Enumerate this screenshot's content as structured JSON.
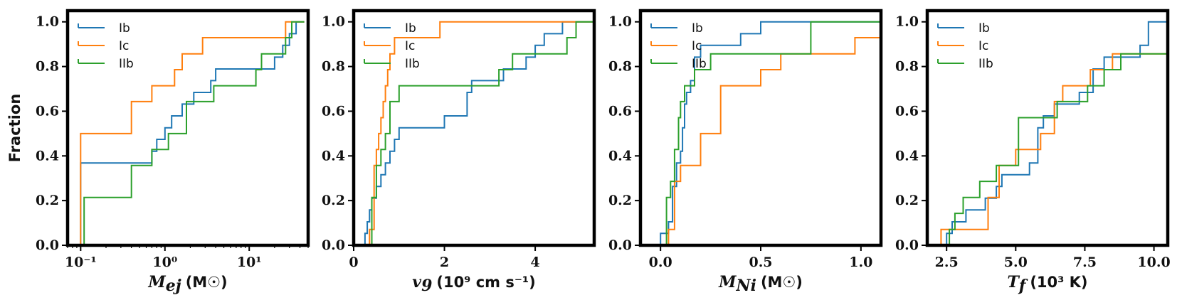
{
  "colors": {
    "Ib": "#1f77b4",
    "Ic": "#ff7f0e",
    "IIb": "#2ca02c"
  },
  "chart_data": [
    {
      "type": "line",
      "step": true,
      "ylabel": "Fraction",
      "xlabel_main": "M",
      "xlabel_sub": "ej",
      "xlabel_units": "(M☉)",
      "xscale": "log",
      "xlim": [
        0.07,
        50
      ],
      "ylim": [
        0,
        1.05
      ],
      "xticks": [
        0.1,
        1,
        10
      ],
      "xtick_labels": [
        "10⁻¹",
        "10⁰",
        "10¹"
      ],
      "yticks": [
        0,
        0.2,
        0.4,
        0.6,
        0.8,
        1.0
      ],
      "ytick_labels": [
        "0.0",
        "0.2",
        "0.4",
        "0.6",
        "0.8",
        "1.0"
      ],
      "legend": [
        "Ib",
        "Ic",
        "IIb"
      ],
      "legend_position": "top-left",
      "series": [
        {
          "name": "Ib",
          "x": [
            0.1,
            0.7,
            0.8,
            1.0,
            1.2,
            1.6,
            2.2,
            3.5,
            4.0,
            6.2,
            12,
            20,
            25,
            30,
            33,
            36,
            45
          ],
          "y": [
            0.368,
            0.421,
            0.474,
            0.526,
            0.579,
            0.632,
            0.684,
            0.737,
            0.789,
            0.789,
            0.789,
            0.842,
            0.895,
            0.947,
            0.947,
            1.0,
            1.0
          ]
        },
        {
          "name": "Ic",
          "x": [
            0.1,
            0.4,
            0.7,
            1.3,
            1.6,
            2.8,
            15,
            27,
            45
          ],
          "y": [
            0.5,
            0.643,
            0.714,
            0.786,
            0.857,
            0.929,
            0.929,
            1.0,
            1.0
          ]
        },
        {
          "name": "IIb",
          "x": [
            0.11,
            0.4,
            0.7,
            1.1,
            1.8,
            3.8,
            8.8,
            12,
            14,
            27,
            32,
            45
          ],
          "y": [
            0.214,
            0.357,
            0.429,
            0.5,
            0.643,
            0.714,
            0.714,
            0.786,
            0.857,
            0.929,
            1.0,
            1.0
          ]
        }
      ]
    },
    {
      "type": "line",
      "step": true,
      "xlabel_main": "v",
      "xlabel_sub": "9",
      "xlabel_units": "(10⁹ cm s⁻¹)",
      "xscale": "linear",
      "xlim": [
        0,
        5.3
      ],
      "ylim": [
        0,
        1.05
      ],
      "xticks": [
        0,
        2,
        4
      ],
      "xtick_labels": [
        "0",
        "2",
        "4"
      ],
      "yticks": [
        0,
        0.2,
        0.4,
        0.6,
        0.8,
        1.0
      ],
      "ytick_labels": [
        "0.0",
        "0.2",
        "0.4",
        "0.6",
        "0.8",
        "1.0"
      ],
      "legend": [
        "Ib",
        "Ic",
        "IIb"
      ],
      "legend_position": "top-left",
      "series": [
        {
          "name": "Ib",
          "x": [
            0.25,
            0.3,
            0.35,
            0.4,
            0.45,
            0.5,
            0.55,
            0.6,
            0.7,
            0.8,
            0.9,
            1.0,
            1.3,
            2.0,
            2.1,
            2.5,
            2.6,
            3.3,
            3.5,
            3.8,
            4.0,
            4.2,
            4.4,
            4.6,
            5.3
          ],
          "y": [
            0.053,
            0.105,
            0.158,
            0.211,
            0.211,
            0.263,
            0.263,
            0.316,
            0.368,
            0.421,
            0.474,
            0.526,
            0.526,
            0.579,
            0.579,
            0.684,
            0.737,
            0.789,
            0.789,
            0.842,
            0.895,
            0.947,
            0.947,
            1.0,
            1.0
          ]
        },
        {
          "name": "Ic",
          "x": [
            0.35,
            0.45,
            0.5,
            0.55,
            0.6,
            0.65,
            0.7,
            0.75,
            0.8,
            0.9,
            1.0,
            1.9,
            5.3
          ],
          "y": [
            0.071,
            0.357,
            0.429,
            0.5,
            0.571,
            0.643,
            0.714,
            0.786,
            0.857,
            0.929,
            0.929,
            1.0,
            1.0
          ]
        },
        {
          "name": "IIb",
          "x": [
            0.4,
            0.5,
            0.6,
            0.7,
            0.8,
            1.0,
            3.2,
            3.5,
            4.7,
            4.9,
            5.3
          ],
          "y": [
            0.214,
            0.357,
            0.429,
            0.5,
            0.643,
            0.714,
            0.786,
            0.857,
            0.929,
            1.0,
            1.0
          ]
        }
      ]
    },
    {
      "type": "line",
      "step": true,
      "xlabel_main": "M",
      "xlabel_sub": "Ni",
      "xlabel_units": "(M☉)",
      "xscale": "linear",
      "xlim": [
        -0.1,
        1.1
      ],
      "ylim": [
        0,
        1.05
      ],
      "xticks": [
        0.0,
        0.5,
        1.0
      ],
      "xtick_labels": [
        "0.0",
        "0.5",
        "1.0"
      ],
      "yticks": [
        0,
        0.2,
        0.4,
        0.6,
        0.8,
        1.0
      ],
      "ytick_labels": [
        "0.0",
        "0.2",
        "0.4",
        "0.6",
        "0.8",
        "1.0"
      ],
      "legend": [
        "Ib",
        "Ic",
        "IIb"
      ],
      "legend_position": "top-left",
      "series": [
        {
          "name": "Ib",
          "x": [
            0.0,
            0.04,
            0.06,
            0.08,
            0.1,
            0.11,
            0.12,
            0.13,
            0.15,
            0.17,
            0.2,
            0.25,
            0.4,
            0.45,
            0.5,
            1.1
          ],
          "y": [
            0.053,
            0.105,
            0.263,
            0.368,
            0.421,
            0.526,
            0.632,
            0.684,
            0.737,
            0.842,
            0.895,
            0.895,
            0.947,
            0.947,
            1.0,
            1.0
          ]
        },
        {
          "name": "Ic",
          "x": [
            0.04,
            0.07,
            0.1,
            0.15,
            0.2,
            0.3,
            0.5,
            0.6,
            0.97,
            1.1
          ],
          "y": [
            0.071,
            0.286,
            0.357,
            0.357,
            0.5,
            0.714,
            0.786,
            0.857,
            0.929,
            0.929
          ]
        },
        {
          "name": "IIb",
          "x": [
            0.03,
            0.05,
            0.07,
            0.09,
            0.1,
            0.12,
            0.17,
            0.25,
            0.75,
            1.1
          ],
          "y": [
            0.214,
            0.286,
            0.429,
            0.571,
            0.643,
            0.714,
            0.786,
            0.857,
            1.0,
            1.0
          ]
        }
      ]
    },
    {
      "type": "line",
      "step": true,
      "xlabel_main": "T",
      "xlabel_sub": "f",
      "xlabel_units": "(10³ K)",
      "xscale": "linear",
      "xlim": [
        1.8,
        10.5
      ],
      "ylim": [
        0,
        1.05
      ],
      "xticks": [
        2.5,
        5.0,
        7.5,
        10.0
      ],
      "xtick_labels": [
        "2.5",
        "5.0",
        "7.5",
        "10.0"
      ],
      "yticks": [
        0,
        0.2,
        0.4,
        0.6,
        0.8,
        1.0
      ],
      "ytick_labels": [
        "0.0",
        "0.2",
        "0.4",
        "0.6",
        "0.8",
        "1.0"
      ],
      "legend": [
        "Ib",
        "Ic",
        "IIb"
      ],
      "legend_position": "top-left",
      "series": [
        {
          "name": "Ib",
          "x": [
            2.5,
            2.7,
            3.2,
            3.9,
            4.3,
            4.5,
            5.0,
            5.5,
            5.8,
            6.0,
            6.4,
            6.8,
            7.3,
            7.8,
            8.2,
            9.0,
            9.5,
            9.8,
            10.5
          ],
          "y": [
            0.053,
            0.105,
            0.158,
            0.211,
            0.263,
            0.316,
            0.316,
            0.368,
            0.526,
            0.579,
            0.632,
            0.632,
            0.684,
            0.789,
            0.842,
            0.842,
            0.895,
            1.0,
            1.0
          ]
        },
        {
          "name": "Ic",
          "x": [
            2.3,
            3.0,
            4.0,
            4.4,
            5.0,
            5.9,
            6.4,
            6.7,
            7.7,
            8.0,
            8.5,
            9.8,
            10.5
          ],
          "y": [
            0.071,
            0.071,
            0.214,
            0.357,
            0.429,
            0.5,
            0.643,
            0.714,
            0.786,
            0.786,
            0.857,
            0.857,
            1.0
          ]
        },
        {
          "name": "IIb",
          "x": [
            2.6,
            2.8,
            3.1,
            3.7,
            4.3,
            5.1,
            6.1,
            6.5,
            7.0,
            7.6,
            8.2,
            8.8,
            10.5
          ],
          "y": [
            0.071,
            0.143,
            0.214,
            0.286,
            0.357,
            0.571,
            0.571,
            0.643,
            0.643,
            0.714,
            0.786,
            0.857,
            1.0
          ]
        }
      ]
    }
  ]
}
